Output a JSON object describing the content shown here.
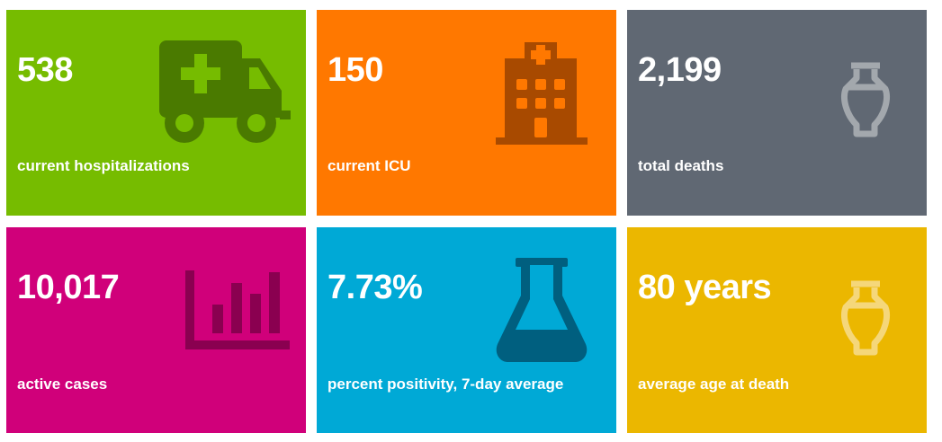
{
  "colors": {
    "hospitalizations": "#76bc00",
    "icu": "#ff7800",
    "deaths": "#606873",
    "active_cases": "#d0007a",
    "positivity": "#00a9d6",
    "age": "#ebb700"
  },
  "tiles": [
    {
      "value": "538",
      "label": "current hospitalizations",
      "icon": "ambulance-icon"
    },
    {
      "value": "150",
      "label": "current ICU",
      "icon": "hospital-icon"
    },
    {
      "value": "2,199",
      "label": "total deaths",
      "icon": "urn-icon"
    },
    {
      "value": "10,017",
      "label": "active cases",
      "icon": "bar-chart-icon"
    },
    {
      "value": "7.73%",
      "label": "percent positivity, 7-day average",
      "icon": "flask-icon"
    },
    {
      "value": "80 years",
      "label": "average age at death",
      "icon": "urn-icon"
    }
  ]
}
